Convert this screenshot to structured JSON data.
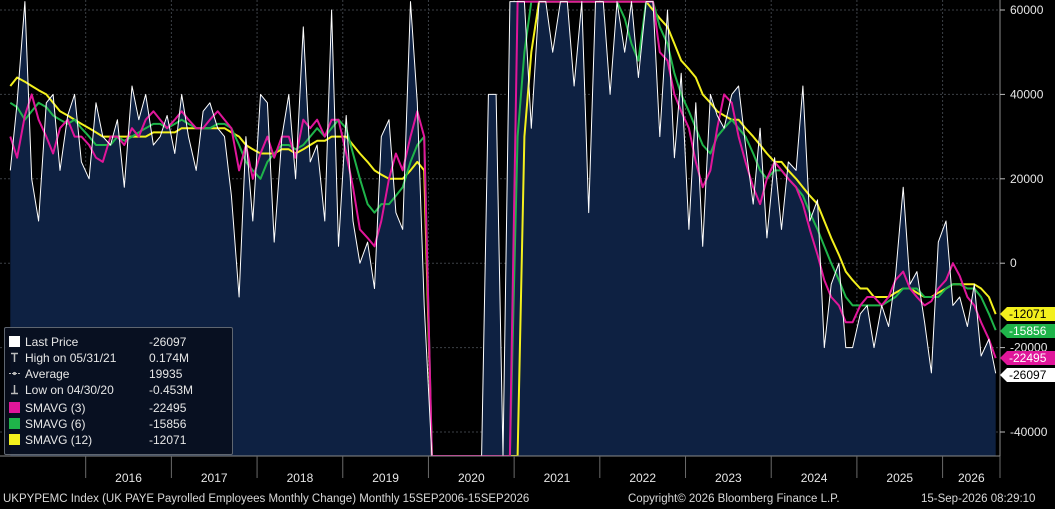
{
  "chart_data": {
    "type": "line",
    "ylim": [
      -46000,
      62000
    ],
    "yticks": [
      60000,
      40000,
      20000,
      0,
      -20000,
      -40000
    ],
    "yticklabels": [
      "60000",
      "40000",
      "20000",
      "0",
      "-20000",
      "-40000"
    ],
    "xticklabels": [
      "2016",
      "2017",
      "2018",
      "2019",
      "2020",
      "2021",
      "2022",
      "2023",
      "2024",
      "2025",
      "2026"
    ],
    "grid": true,
    "legend_position": "bottom-left",
    "colors": {
      "price": "#ffffff",
      "area": "#0e2142",
      "sma3": "#e0169a",
      "sma6": "#1fb44a",
      "sma12": "#f3f01d"
    },
    "last_value_tags": [
      "-12071",
      "-15856",
      "-22495",
      "-26097"
    ],
    "x": [
      2015.12,
      2015.2,
      2015.29,
      2015.37,
      2015.45,
      2015.54,
      2015.62,
      2015.7,
      2015.79,
      2015.87,
      2015.95,
      2016.04,
      2016.12,
      2016.2,
      2016.29,
      2016.37,
      2016.45,
      2016.54,
      2016.62,
      2016.7,
      2016.79,
      2016.87,
      2016.95,
      2017.04,
      2017.12,
      2017.2,
      2017.29,
      2017.37,
      2017.45,
      2017.54,
      2017.62,
      2017.7,
      2017.79,
      2017.87,
      2017.95,
      2018.04,
      2018.12,
      2018.2,
      2018.29,
      2018.37,
      2018.45,
      2018.54,
      2018.62,
      2018.7,
      2018.79,
      2018.87,
      2018.95,
      2019.04,
      2019.12,
      2019.2,
      2019.29,
      2019.37,
      2019.45,
      2019.54,
      2019.62,
      2019.7,
      2019.79,
      2019.87,
      2019.95,
      2020.04,
      2020.12,
      2020.2,
      2020.29,
      2020.37,
      2020.45,
      2020.54,
      2020.62,
      2020.7,
      2020.79,
      2020.87,
      2020.95,
      2021.04,
      2021.12,
      2021.2,
      2021.29,
      2021.37,
      2021.45,
      2021.54,
      2021.62,
      2021.7,
      2021.79,
      2021.87,
      2021.95,
      2022.04,
      2022.12,
      2022.2,
      2022.29,
      2022.37,
      2022.45,
      2022.54,
      2022.62,
      2022.7,
      2022.79,
      2022.87,
      2022.95,
      2023.04,
      2023.12,
      2023.2,
      2023.29,
      2023.37,
      2023.45,
      2023.54,
      2023.62,
      2023.7,
      2023.79,
      2023.87,
      2023.95,
      2024.04,
      2024.12,
      2024.2,
      2024.29,
      2024.37,
      2024.45,
      2024.54,
      2024.62,
      2024.7,
      2024.79,
      2024.87,
      2024.95,
      2025.04,
      2025.12,
      2025.2,
      2025.29,
      2025.37,
      2025.45,
      2025.54,
      2025.62,
      2025.7,
      2025.79,
      2025.87,
      2025.95,
      2026.04,
      2026.12,
      2026.2,
      2026.29,
      2026.37,
      2026.45,
      2026.54,
      2026.62
    ],
    "series": [
      {
        "name": "Last Price",
        "values": [
          22000,
          38000,
          62000,
          20000,
          10000,
          38000,
          40000,
          22000,
          35000,
          40000,
          24000,
          20000,
          38000,
          30000,
          28000,
          34000,
          18000,
          42000,
          34000,
          40000,
          28000,
          30000,
          35000,
          26000,
          40000,
          30000,
          22000,
          36000,
          38000,
          32000,
          30000,
          16000,
          -8000,
          30000,
          10000,
          40000,
          38000,
          5000,
          30000,
          40000,
          20000,
          56000,
          24000,
          28000,
          10000,
          60000,
          4000,
          35000,
          10000,
          0,
          5000,
          -6000,
          30000,
          34000,
          12000,
          8000,
          62000,
          38000,
          -10000,
          -46000,
          -46000,
          -46000,
          -46000,
          -46000,
          -46000,
          -46000,
          -46000,
          40000,
          40000,
          -46000,
          62000,
          62000,
          62000,
          32000,
          62000,
          62000,
          50000,
          62000,
          62000,
          42000,
          62000,
          12000,
          62000,
          62000,
          40000,
          62000,
          50000,
          62000,
          44000,
          62000,
          62000,
          30000,
          60000,
          25000,
          45000,
          8000,
          38000,
          4000,
          40000,
          35000,
          32000,
          40000,
          42000,
          28000,
          14000,
          32000,
          6000,
          25000,
          8000,
          24000,
          22000,
          42000,
          10000,
          15000,
          -20000,
          -5000,
          0,
          -20000,
          -20000,
          -12000,
          -10000,
          -20000,
          -10000,
          -15000,
          -3000,
          18000,
          -5000,
          -2000,
          -14000,
          -26000,
          5000,
          10000,
          -10000,
          -8000,
          -15000,
          -5000,
          -22000,
          -18000,
          -26097
        ]
      },
      {
        "name": "SMAVG (3)",
        "values": [
          30000,
          25000,
          35000,
          40000,
          34000,
          30000,
          26000,
          32000,
          34000,
          30000,
          30000,
          28000,
          25000,
          24000,
          30000,
          30000,
          28000,
          32000,
          30000,
          34000,
          36000,
          34000,
          32000,
          34000,
          36000,
          34000,
          32000,
          32000,
          34000,
          36000,
          34000,
          32000,
          22000,
          28000,
          20000,
          26000,
          30000,
          25000,
          30000,
          30000,
          25000,
          34000,
          32000,
          34000,
          30000,
          34000,
          34000,
          26000,
          18000,
          8000,
          6000,
          4000,
          10000,
          20000,
          26000,
          22000,
          30000,
          36000,
          30000,
          -46000,
          -46000,
          -46000,
          -46000,
          -46000,
          -46000,
          -46000,
          -46000,
          -46000,
          -46000,
          -46000,
          -46000,
          62000,
          62000,
          62000,
          62000,
          62000,
          62000,
          62000,
          62000,
          62000,
          62000,
          62000,
          62000,
          62000,
          62000,
          62000,
          62000,
          62000,
          62000,
          62000,
          62000,
          50000,
          48000,
          40000,
          36000,
          32000,
          24000,
          18000,
          22000,
          32000,
          40000,
          38000,
          30000,
          24000,
          18000,
          14000,
          20000,
          24000,
          22000,
          20000,
          18000,
          14000,
          8000,
          2000,
          -4000,
          -8000,
          -10000,
          -14000,
          -14000,
          -10000,
          -8000,
          -8000,
          -10000,
          -8000,
          -4000,
          -2000,
          -6000,
          -8000,
          -10000,
          -9000,
          -6000,
          -4000,
          0,
          -3000,
          -8000,
          -10000,
          -14000,
          -18000,
          -22495
        ]
      },
      {
        "name": "SMAVG (6)",
        "values": [
          38000,
          37000,
          34000,
          36000,
          38000,
          37000,
          35000,
          34000,
          33000,
          34000,
          32000,
          30000,
          28000,
          28000,
          28000,
          30000,
          29000,
          30000,
          31000,
          32000,
          33000,
          33000,
          32000,
          33000,
          34000,
          33000,
          32000,
          32000,
          32000,
          33000,
          33000,
          32000,
          28000,
          24000,
          22000,
          20000,
          24000,
          26000,
          28000,
          28000,
          27000,
          28000,
          30000,
          32000,
          30000,
          32000,
          34000,
          32000,
          26000,
          20000,
          14000,
          12000,
          14000,
          14000,
          16000,
          18000,
          24000,
          28000,
          30000,
          -46000,
          -46000,
          -46000,
          -46000,
          -46000,
          -46000,
          -46000,
          -46000,
          -46000,
          -46000,
          -46000,
          -46000,
          30000,
          50000,
          62000,
          62000,
          62000,
          62000,
          62000,
          62000,
          62000,
          62000,
          62000,
          62000,
          62000,
          62000,
          62000,
          58000,
          52000,
          48000,
          62000,
          62000,
          56000,
          52000,
          45000,
          40000,
          36000,
          32000,
          28000,
          26000,
          30000,
          32000,
          34000,
          32000,
          30000,
          26000,
          22000,
          20000,
          22000,
          22000,
          20000,
          18000,
          16000,
          12000,
          8000,
          4000,
          0,
          -4000,
          -8000,
          -10000,
          -10000,
          -10000,
          -10000,
          -10000,
          -9000,
          -8000,
          -6000,
          -6000,
          -6000,
          -8000,
          -8000,
          -8000,
          -6000,
          -5000,
          -5000,
          -6000,
          -6000,
          -8000,
          -12000,
          -15856
        ]
      },
      {
        "name": "SMAVG (12)",
        "values": [
          42000,
          44000,
          43000,
          42000,
          41000,
          40000,
          38000,
          36000,
          35000,
          34000,
          33000,
          32000,
          31000,
          30000,
          30000,
          30000,
          30000,
          30000,
          30000,
          30000,
          31000,
          31000,
          31000,
          31000,
          32000,
          32000,
          32000,
          32000,
          32000,
          32000,
          32000,
          31000,
          30000,
          28000,
          27000,
          26000,
          26000,
          26000,
          27000,
          27000,
          26000,
          27000,
          28000,
          29000,
          29000,
          30000,
          30000,
          30000,
          28000,
          26000,
          24000,
          22000,
          21000,
          20000,
          20000,
          20000,
          22000,
          24000,
          22000,
          -46000,
          -46000,
          -46000,
          -46000,
          -46000,
          -46000,
          -46000,
          -46000,
          -46000,
          -46000,
          -46000,
          -46000,
          -46000,
          30000,
          50000,
          62000,
          62000,
          62000,
          62000,
          62000,
          62000,
          62000,
          62000,
          62000,
          62000,
          62000,
          62000,
          62000,
          62000,
          62000,
          62000,
          60000,
          58000,
          56000,
          52000,
          48000,
          46000,
          44000,
          40000,
          38000,
          36000,
          35000,
          34000,
          34000,
          32000,
          30000,
          28000,
          26000,
          24000,
          24000,
          22000,
          20000,
          18000,
          16000,
          14000,
          10000,
          6000,
          2000,
          -2000,
          -4000,
          -6000,
          -6000,
          -8000,
          -8000,
          -8000,
          -7000,
          -6000,
          -6000,
          -7000,
          -8000,
          -8000,
          -7000,
          -6000,
          -5000,
          -5000,
          -5000,
          -5000,
          -6000,
          -8000,
          -12071
        ]
      }
    ]
  },
  "legend": {
    "items": [
      {
        "label": "Last Price",
        "value": "-26097"
      },
      {
        "label": "High on 05/31/21",
        "value": "0.174M"
      },
      {
        "label": "Average",
        "value": "19935"
      },
      {
        "label": "Low on 04/30/20",
        "value": "-0.453M"
      },
      {
        "label": "SMAVG (3)",
        "value": "-22495"
      },
      {
        "label": "SMAVG (6)",
        "value": "-15856"
      },
      {
        "label": "SMAVG (12)",
        "value": "-12071"
      }
    ]
  },
  "footer": {
    "description": "UKPYPEMC Index (UK PAYE Payrolled Employees Monthly Change) Monthly 15SEP2006-15SEP2026",
    "copyright": "Copyright© 2026 Bloomberg Finance L.P.",
    "timestamp": "15-Sep-2026 08:29:10"
  }
}
